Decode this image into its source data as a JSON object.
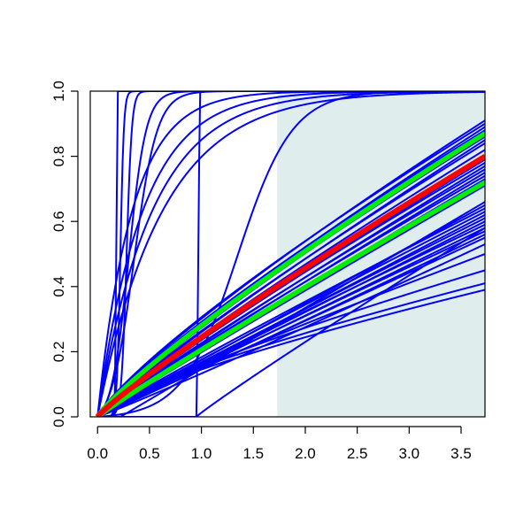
{
  "chart_data": {
    "type": "line",
    "title": "",
    "xlabel": "",
    "ylabel": "",
    "xlim": [
      -0.07,
      3.73
    ],
    "ylim": [
      0.0,
      1.0
    ],
    "x_ticks": [
      "0.0",
      "0.5",
      "1.0",
      "1.5",
      "2.0",
      "2.5",
      "3.0",
      "3.5"
    ],
    "y_ticks": [
      "0.0",
      "0.2",
      "0.4",
      "0.6",
      "0.8",
      "1.0"
    ],
    "shaded_region": {
      "x_from": 1.73,
      "x_to": 3.73,
      "color": "#e0eded"
    },
    "colors": {
      "sample": "#0000ff",
      "central": "#ff0000",
      "band": "#00ee00"
    },
    "series": [
      {
        "role": "sample",
        "kind": "step",
        "params": {
          "threshold": 0.18
        }
      },
      {
        "role": "sample",
        "kind": "logistic",
        "params": {
          "x0": 0.22,
          "k": 60
        }
      },
      {
        "role": "sample",
        "kind": "logistic",
        "params": {
          "x0": 0.28,
          "k": 40
        }
      },
      {
        "role": "sample",
        "kind": "logistic",
        "params": {
          "x0": 0.3,
          "k": 12
        }
      },
      {
        "role": "sample",
        "kind": "logistic",
        "params": {
          "x0": 0.35,
          "k": 9
        }
      },
      {
        "role": "sample",
        "kind": "step",
        "params": {
          "threshold": 0.97
        }
      },
      {
        "role": "sample",
        "kind": "logistic",
        "params": {
          "x0": 1.35,
          "k": 3.8
        }
      },
      {
        "role": "sample",
        "kind": "exp",
        "params": {
          "rate": 1.6
        }
      },
      {
        "role": "sample",
        "kind": "exp",
        "params": {
          "rate": 1.9
        }
      },
      {
        "role": "sample",
        "kind": "exp",
        "params": {
          "rate": 2.3
        }
      },
      {
        "role": "sample",
        "kind": "exp",
        "params": {
          "rate": 3.0
        }
      },
      {
        "role": "sample",
        "kind": "power",
        "params": {
          "end": 0.91,
          "p": 0.84
        }
      },
      {
        "role": "sample",
        "kind": "power",
        "params": {
          "end": 0.9,
          "p": 0.82
        }
      },
      {
        "role": "sample",
        "kind": "power",
        "params": {
          "end": 0.89,
          "p": 0.86
        }
      },
      {
        "role": "sample",
        "kind": "power",
        "params": {
          "end": 0.88,
          "p": 0.84
        }
      },
      {
        "role": "sample",
        "kind": "power",
        "params": {
          "end": 0.87,
          "p": 0.88
        }
      },
      {
        "role": "sample",
        "kind": "power",
        "params": {
          "end": 0.86,
          "p": 0.86
        }
      },
      {
        "role": "sample",
        "kind": "power",
        "params": {
          "end": 0.85,
          "p": 0.9
        }
      },
      {
        "role": "sample",
        "kind": "power",
        "params": {
          "end": 0.84,
          "p": 0.88
        }
      },
      {
        "role": "sample",
        "kind": "power",
        "params": {
          "end": 0.82,
          "p": 0.9
        }
      },
      {
        "role": "sample",
        "kind": "power",
        "params": {
          "end": 0.8,
          "p": 0.92
        }
      },
      {
        "role": "sample",
        "kind": "power",
        "params": {
          "end": 0.79,
          "p": 0.92
        }
      },
      {
        "role": "sample",
        "kind": "power",
        "params": {
          "end": 0.78,
          "p": 0.9
        }
      },
      {
        "role": "sample",
        "kind": "power",
        "params": {
          "end": 0.77,
          "p": 0.94
        }
      },
      {
        "role": "sample",
        "kind": "power",
        "params": {
          "end": 0.76,
          "p": 0.92
        }
      },
      {
        "role": "sample",
        "kind": "power",
        "params": {
          "end": 0.75,
          "p": 0.95
        }
      },
      {
        "role": "sample",
        "kind": "power",
        "params": {
          "end": 0.74,
          "p": 0.93
        }
      },
      {
        "role": "sample",
        "kind": "power",
        "params": {
          "end": 0.73,
          "p": 0.96
        }
      },
      {
        "role": "sample",
        "kind": "power",
        "params": {
          "end": 0.72,
          "p": 0.95
        }
      },
      {
        "role": "sample",
        "kind": "power",
        "params": {
          "end": 0.71,
          "p": 0.97
        }
      },
      {
        "role": "sample",
        "kind": "power",
        "params": {
          "end": 0.65,
          "p": 1.0
        }
      },
      {
        "role": "sample",
        "kind": "power",
        "params": {
          "end": 0.64,
          "p": 0.95
        }
      },
      {
        "role": "sample",
        "kind": "power",
        "params": {
          "end": 0.63,
          "p": 0.97
        }
      },
      {
        "role": "sample",
        "kind": "power",
        "params": {
          "end": 0.62,
          "p": 1.0
        }
      },
      {
        "role": "sample",
        "kind": "power",
        "params": {
          "end": 0.61,
          "p": 0.98
        }
      },
      {
        "role": "sample",
        "kind": "power",
        "params": {
          "end": 0.6,
          "p": 1.0
        }
      },
      {
        "role": "sample",
        "kind": "power",
        "params": {
          "end": 0.59,
          "p": 0.96
        }
      },
      {
        "role": "sample",
        "kind": "power",
        "params": {
          "end": 0.58,
          "p": 1.0
        }
      },
      {
        "role": "sample",
        "kind": "power",
        "params": {
          "end": 0.57,
          "p": 0.98
        }
      },
      {
        "role": "sample",
        "kind": "power",
        "params": {
          "end": 0.56,
          "p": 1.02
        }
      },
      {
        "role": "sample",
        "kind": "power",
        "params": {
          "end": 0.55,
          "p": 1.0
        }
      },
      {
        "role": "sample",
        "kind": "power",
        "params": {
          "end": 0.53,
          "p": 1.05
        }
      },
      {
        "role": "sample",
        "kind": "power",
        "params": {
          "end": 0.5,
          "p": 0.9
        }
      },
      {
        "role": "sample",
        "kind": "power",
        "params": {
          "end": 0.45,
          "p": 0.8
        }
      },
      {
        "role": "sample",
        "kind": "power",
        "params": {
          "end": 0.41,
          "p": 0.75
        }
      },
      {
        "role": "sample",
        "kind": "power",
        "params": {
          "end": 0.39,
          "p": 0.75
        }
      },
      {
        "role": "sample",
        "kind": "offset",
        "params": {
          "x0": 0.22,
          "end": 0.66,
          "p": 1.0
        }
      },
      {
        "role": "sample",
        "kind": "offset",
        "params": {
          "x0": 0.95,
          "end": 0.58,
          "p": 0.95
        }
      },
      {
        "role": "band",
        "kind": "power",
        "params": {
          "end": 0.87,
          "p": 0.86
        }
      },
      {
        "role": "band",
        "kind": "power",
        "params": {
          "end": 0.72,
          "p": 0.95
        }
      },
      {
        "role": "central",
        "kind": "power",
        "params": {
          "end": 0.8,
          "p": 0.9
        }
      }
    ]
  }
}
